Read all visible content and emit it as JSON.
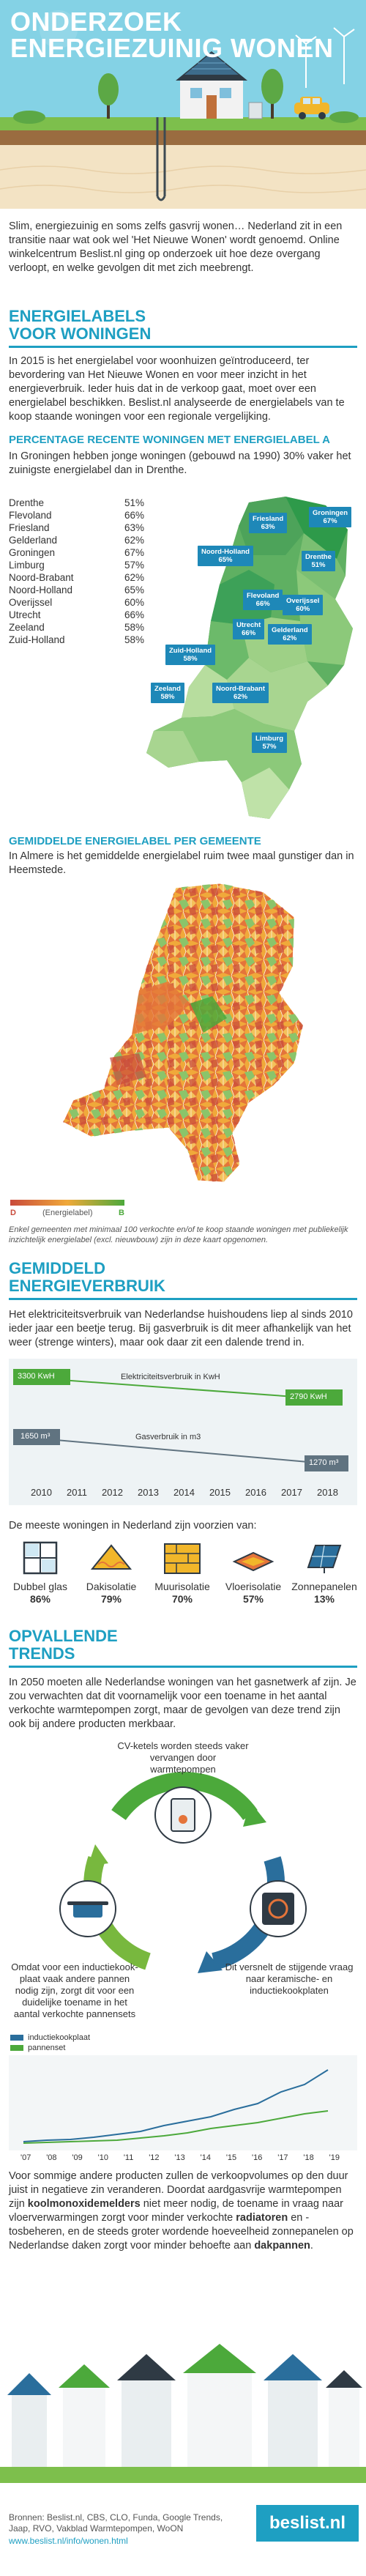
{
  "hero": {
    "title_line1": "ONDERZOEK",
    "title_line2": "ENERGIEZUINIG WONEN"
  },
  "intro": {
    "text": "Slim, energiezuinig en soms zelfs gasvrij wonen… Nederland zit in een transitie naar wat ook wel 'Het Nieuwe Wonen' wordt genoemd. Online winkelcentrum Beslist.nl ging op onderzoek uit hoe deze overgang verloopt, en welke gevolgen dit met zich meebrengt."
  },
  "energielabels": {
    "title_line1": "ENERGIELABELS",
    "title_line2": "VOOR WONINGEN",
    "text": "In 2015 is het energielabel voor woonhuizen geïntroduceerd, ter bevordering van Het Nieuwe Wonen en voor meer inzicht in het energieverbruik. Ieder huis dat in de verkoop gaat, moet over een energielabel beschikken. Beslist.nl analyseerde de energielabels van te koop staande woningen voor een regionale vergelijking."
  },
  "label_a": {
    "title": "PERCENTAGE RECENTE WONINGEN MET ENERGIELABEL A",
    "text": "In Groningen hebben jonge woningen (gebouwd na 1990) 30% vaker het zuinigste energielabel dan in Drenthe.",
    "provinces": [
      {
        "name": "Drenthe",
        "value": "51%"
      },
      {
        "name": "Flevoland",
        "value": "66%"
      },
      {
        "name": "Friesland",
        "value": "63%"
      },
      {
        "name": "Gelderland",
        "value": "62%"
      },
      {
        "name": "Groningen",
        "value": "67%"
      },
      {
        "name": "Limburg",
        "value": "57%"
      },
      {
        "name": "Noord-Brabant",
        "value": "62%"
      },
      {
        "name": "Noord-Holland",
        "value": "65%"
      },
      {
        "name": "Overijssel",
        "value": "60%"
      },
      {
        "name": "Utrecht",
        "value": "66%"
      },
      {
        "name": "Zeeland",
        "value": "58%"
      },
      {
        "name": "Zuid-Holland",
        "value": "58%"
      }
    ]
  },
  "gemiddeld_label": {
    "title": "GEMIDDELDE ENERGIELABEL PER GEMEENTE",
    "text": "In Almere is het gemiddelde energielabel ruim twee maal gunstiger dan in Heemstede.",
    "legend_low": "D",
    "legend_mid": "(Energielabel)",
    "legend_high": "B",
    "footnote": "Enkel gemeenten met minimaal 100 verkochte en/of te koop staande woningen met publiekelijk inzichtelijk energielabel (excl. nieuwbouw) zijn in deze kaart opgenomen."
  },
  "verbruik": {
    "title_line1": "GEMIDDELD",
    "title_line2": "ENERGIEVERBRUIK",
    "text": "Het elektriciteitsverbruik van Nederlandse huishoudens liep al sinds 2010 ieder jaar een beetje terug. Bij gasverbruik is dit meer afhankelijk van het weer (strenge winters), maar ook daar zit een dalende trend in.",
    "elec_label": "Elektriciteitsverbruik in KwH",
    "gas_label": "Gasverbruik in m3",
    "elec_start": "3300 KwH",
    "elec_end": "2790 KwH",
    "gas_start": "1650 m³",
    "gas_end": "1270 m³",
    "years": [
      "2010",
      "2011",
      "2012",
      "2013",
      "2014",
      "2015",
      "2016",
      "2017",
      "2018"
    ]
  },
  "voorzieningen": {
    "text": "De meeste woningen in Nederland zijn voorzien van:",
    "items": [
      {
        "name": "Dubbel glas",
        "value": "86%",
        "icon": "double-glass-icon"
      },
      {
        "name": "Dakisolatie",
        "value": "79%",
        "icon": "roof-insulation-icon"
      },
      {
        "name": "Muurisolatie",
        "value": "70%",
        "icon": "wall-insulation-icon"
      },
      {
        "name": "Vloerisolatie",
        "value": "57%",
        "icon": "floor-insulation-icon"
      },
      {
        "name": "Zonnepanelen",
        "value": "13%",
        "icon": "solar-panel-icon"
      }
    ]
  },
  "trends": {
    "title_line1": "OPVALLENDE",
    "title_line2": "TRENDS",
    "text": "In 2050 moeten alle Nederlandse woningen van het gasnetwerk af zijn. Je zou verwachten dat dit voornamelijk voor een toename in het aantal verkochte warmtepompen zorgt, maar de gevolgen van deze trend zijn ook bij andere producten merkbaar.",
    "cycle_top": "CV-ketels worden steeds vaker vervangen door warmtepompen",
    "cycle_right": "Dit versnelt de stijgende vraag naar keramische- en inductiekookplaten",
    "cycle_left": "Omdat voor een inductiekook-plaat vaak andere pannen nodig zijn, zorgt dit voor een duidelijke toename in het aantal verkochte pannensets",
    "legend_a": "inductiekookplaat",
    "legend_b": "pannenset",
    "years": [
      "'07",
      "'08",
      "'09",
      "'10",
      "'11",
      "'12",
      "'13",
      "'14",
      "'15",
      "'16",
      "'17",
      "'18",
      "'19"
    ],
    "outro_1": "Voor sommige andere producten zullen de verkoopvolumes op den duur juist in negatieve zin veranderen. Doordat aardgasvrije warmtepompen zijn ",
    "outro_bold1": "koolmonoxidemelders",
    "outro_2": " niet meer nodig, de toename in vraag naar vloerverwarmingen zorgt voor minder verkochte ",
    "outro_bold2": "radiatoren",
    "outro_3": " en -tosbeheren, en de steeds groter wordende hoeveelheid zonnepanelen op Nederlandse daken zorgt voor minder behoefte aan ",
    "outro_bold3": "dakpannen",
    "outro_4": "."
  },
  "footer": {
    "sources": "Bronnen: Beslist.nl, CBS, CLO, Funda, Google Trends, Jaap, RVO, Vakblad Warmtepompen, WoON",
    "url": "www.beslist.nl/info/wonen.html",
    "logo": "beslist.nl"
  },
  "colors": {
    "accent": "#1e9fc2",
    "sky": "#7fcfe3",
    "grass": "#7dbf4c",
    "map_dark": "#2e9a4a",
    "map_light": "#bfe2a8",
    "elec": "#4ca93b",
    "gas": "#607380",
    "orange": "#e4743a",
    "red": "#c94a3b"
  }
}
